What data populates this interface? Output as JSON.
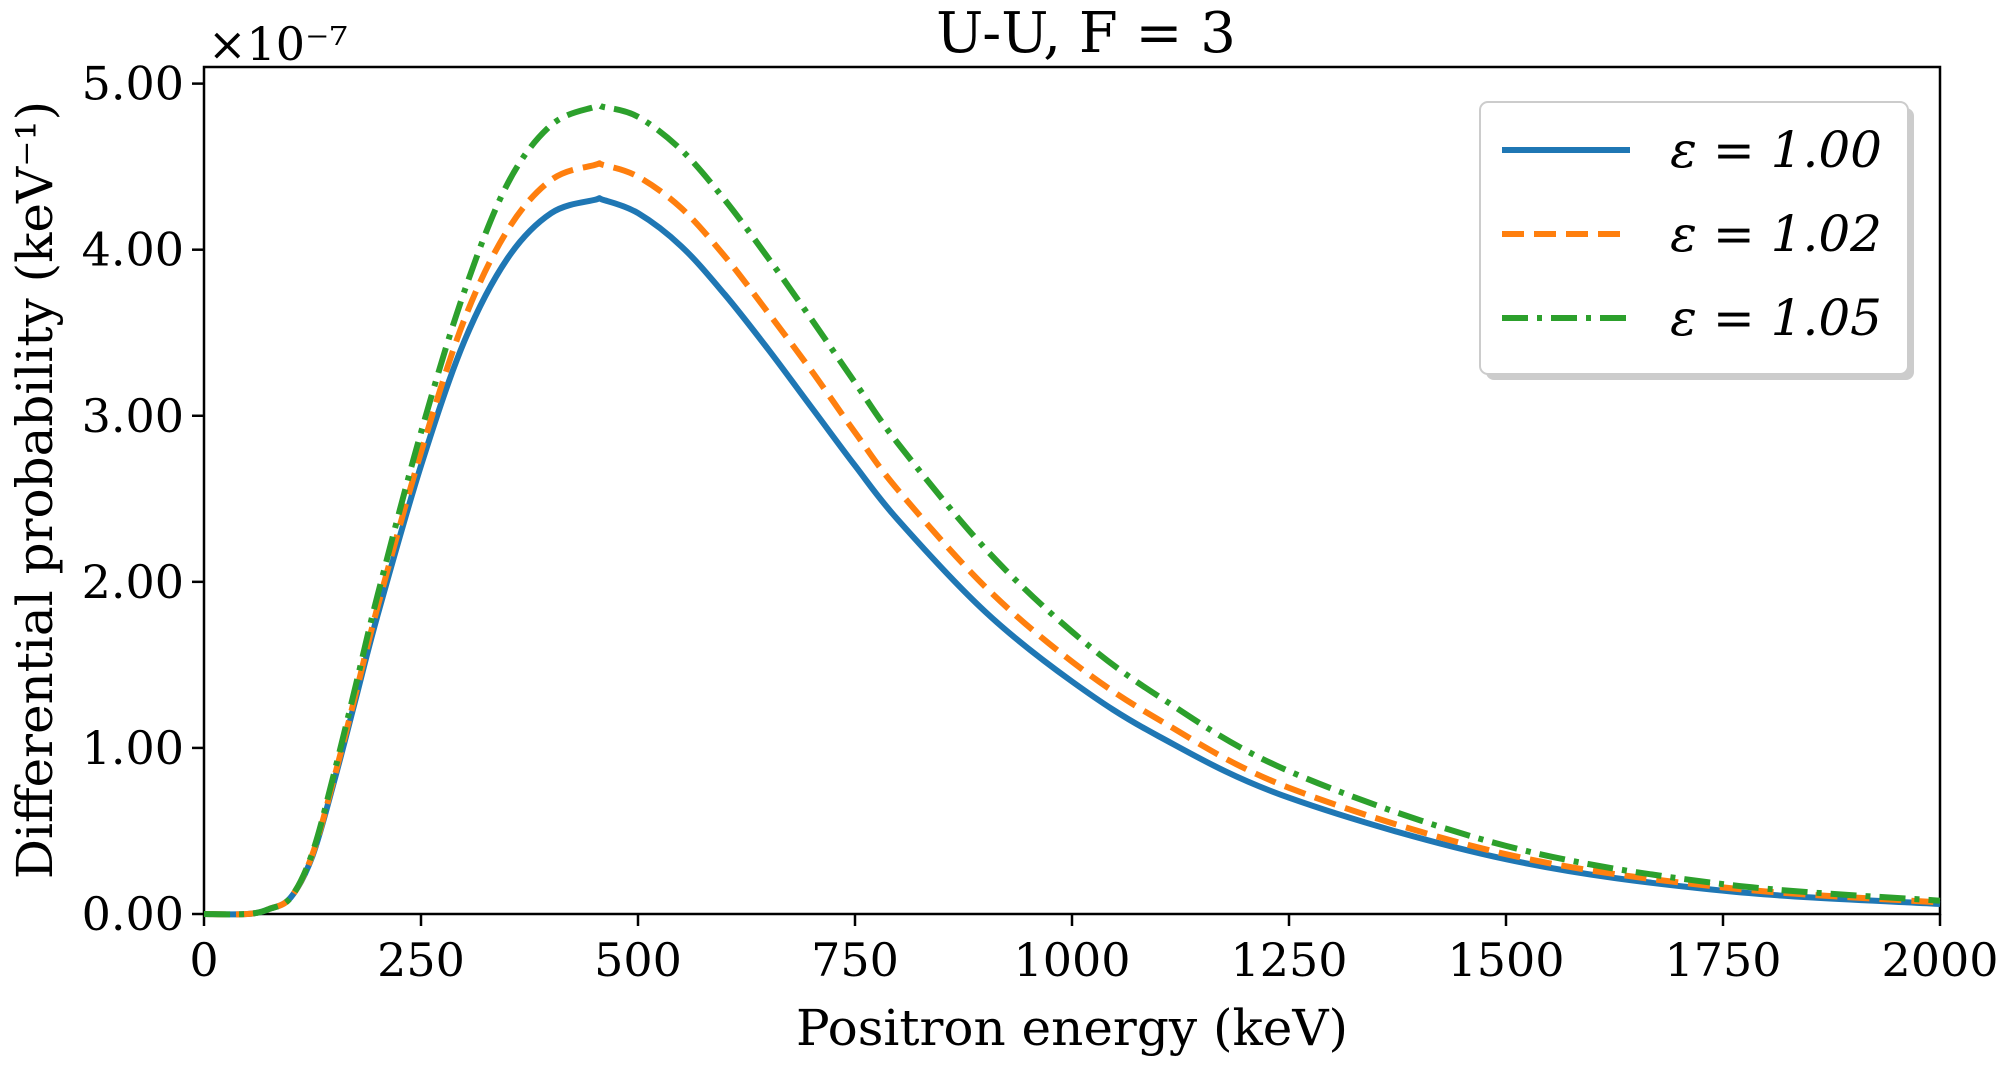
{
  "chart_data": {
    "type": "line",
    "title": "U-U, F = 3",
    "xlabel": "Positron energy (keV)",
    "ylabel": "Differential probability (keV⁻¹)",
    "y_multiplier": "×10⁻⁷",
    "xlim": [
      0,
      2000
    ],
    "ylim": [
      0,
      5.1
    ],
    "x_ticks": [
      0,
      250,
      500,
      750,
      1000,
      1250,
      1500,
      1750,
      2000
    ],
    "x_tick_labels": [
      "0",
      "250",
      "500",
      "750",
      "1000",
      "1250",
      "1500",
      "1750",
      "2000"
    ],
    "y_ticks": [
      0,
      1,
      2,
      3,
      4,
      5
    ],
    "y_tick_labels": [
      "0.00",
      "1.00",
      "2.00",
      "3.00",
      "4.00",
      "5.00"
    ],
    "grid": false,
    "legend_position": "top-right",
    "x": [
      0,
      50,
      75,
      100,
      125,
      150,
      175,
      200,
      250,
      300,
      350,
      400,
      450,
      460,
      500,
      550,
      600,
      650,
      700,
      750,
      800,
      900,
      1000,
      1100,
      1250,
      1500,
      1750,
      2000
    ],
    "series": [
      {
        "name": "ε = 1.00",
        "color": "#1f77b4",
        "dash": "solid",
        "values": [
          0.0,
          0.0,
          0.03,
          0.1,
          0.35,
          0.8,
          1.3,
          1.8,
          2.7,
          3.45,
          3.95,
          4.22,
          4.3,
          4.3,
          4.22,
          4.02,
          3.73,
          3.4,
          3.05,
          2.7,
          2.37,
          1.82,
          1.4,
          1.07,
          0.7,
          0.33,
          0.14,
          0.06
        ]
      },
      {
        "name": "ε = 1.02",
        "color": "#ff7f0e",
        "dash": "dashed",
        "values": [
          0.0,
          0.0,
          0.03,
          0.1,
          0.36,
          0.82,
          1.33,
          1.85,
          2.78,
          3.58,
          4.12,
          4.42,
          4.51,
          4.51,
          4.44,
          4.25,
          3.96,
          3.62,
          3.27,
          2.9,
          2.55,
          1.97,
          1.52,
          1.17,
          0.76,
          0.36,
          0.16,
          0.07
        ]
      },
      {
        "name": "ε = 1.05",
        "color": "#2ca02c",
        "dash": "dashdot",
        "values": [
          0.0,
          0.0,
          0.03,
          0.1,
          0.37,
          0.85,
          1.38,
          1.92,
          2.9,
          3.75,
          4.4,
          4.75,
          4.86,
          4.86,
          4.8,
          4.6,
          4.3,
          3.95,
          3.58,
          3.2,
          2.83,
          2.2,
          1.7,
          1.31,
          0.86,
          0.41,
          0.18,
          0.08
        ]
      }
    ]
  }
}
